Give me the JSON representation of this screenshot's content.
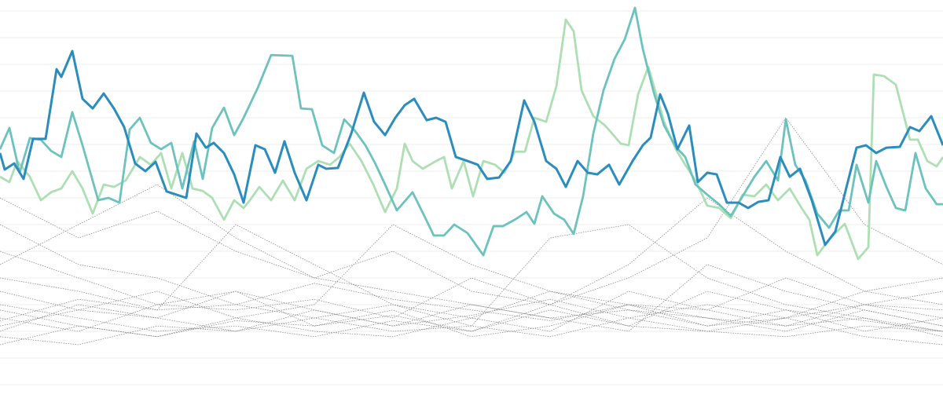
{
  "chart_data": {
    "type": "line",
    "title": "",
    "xlabel": "",
    "ylabel": "",
    "xlim": [
      0,
      120
    ],
    "ylim": [
      0,
      140
    ],
    "grid": {
      "horizontal": true,
      "vertical": false,
      "step": 10
    },
    "legend": "none",
    "colors": {
      "grid": "#eeeeee",
      "background": "#ffffff",
      "context": "#8a8a8a"
    },
    "highlight_series": [
      {
        "color": "#2b8cbe",
        "x": [
          0,
          0.6,
          1.8,
          3,
          4.2,
          5.8,
          7.2,
          7.8,
          9.2,
          10.5,
          11.8,
          13.2,
          14.5,
          15.8,
          17.2,
          18.5,
          19.8,
          21.2,
          23.7,
          25,
          26.2,
          27.2,
          28.5,
          29.8,
          31,
          32.5,
          33.7,
          35,
          36.2,
          37.5,
          39,
          40.5,
          41.5,
          43,
          44.7,
          46.3,
          47.6,
          49,
          50.3,
          51.5,
          52.7,
          54.3,
          55.5,
          56.7,
          58,
          59.5,
          60.8,
          62,
          63.5,
          65,
          66.7,
          68,
          69.5,
          70.8,
          72,
          73.5,
          74.8,
          76,
          77.5,
          78.8,
          80.5,
          81.8,
          82.8,
          84,
          85,
          86.2,
          87.7,
          88.8,
          90,
          91.2,
          92.5,
          94,
          95.2,
          96.5,
          97.8,
          99.3,
          100.5,
          101.8,
          103.3,
          105,
          106.3,
          107.8,
          109,
          110.2,
          111.5,
          112.8,
          114.5,
          115.8,
          117,
          118.5,
          120
        ],
        "y": [
          86.8,
          80.6,
          82.9,
          77.1,
          92.1,
          92.1,
          118.2,
          115.3,
          125,
          107.1,
          103.5,
          109.1,
          103.5,
          96.5,
          82.9,
          80,
          83.5,
          72.4,
          70,
          94.1,
          88.8,
          90.6,
          86.8,
          78.8,
          68.2,
          89.7,
          88.2,
          79.4,
          91.2,
          79.4,
          69.1,
          82.4,
          80.9,
          81.2,
          94.1,
          109.4,
          98.5,
          93.5,
          100,
          104.7,
          107.1,
          99.1,
          100,
          98.5,
          85.3,
          83.8,
          82.4,
          77.1,
          77.6,
          83.8,
          106.5,
          98.5,
          83.8,
          80.9,
          74.1,
          83.8,
          79.4,
          78.8,
          82.4,
          75,
          83.8,
          89.7,
          92.6,
          108.8,
          101.5,
          88.2,
          97.1,
          75.9,
          79.4,
          78.8,
          68.2,
          68.2,
          66.2,
          68.5,
          69.1,
          85.3,
          77.9,
          80.9,
          69.1,
          52.4,
          57.4,
          75,
          88.8,
          89.7,
          86.8,
          88.8,
          89.1,
          96.5,
          95,
          100.6,
          89.7
        ]
      },
      {
        "color": "#6cc3bd",
        "x": [
          0,
          1.2,
          2.5,
          3.8,
          5.2,
          6.5,
          7.8,
          9.2,
          10.5,
          12.5,
          13.8,
          15.2,
          16.5,
          17.8,
          19.2,
          20.5,
          21.8,
          23.2,
          24.7,
          25.8,
          27,
          28.5,
          29.8,
          31,
          32.8,
          34.5,
          37.2,
          38.3,
          39.7,
          41,
          42.5,
          43.8,
          45.2,
          46.5,
          47.7,
          49,
          50.5,
          52.5,
          54,
          55.2,
          56.5,
          57.8,
          59.5,
          61.5,
          62.8,
          64,
          65.5,
          67,
          68,
          69,
          70.5,
          71.8,
          73,
          74.2,
          75.5,
          76.8,
          78.2,
          79.5,
          80.8,
          81.8,
          83.2,
          84.5,
          86,
          87.2,
          88.5,
          90,
          91.5,
          93,
          94.5,
          96,
          97.5,
          99,
          100,
          101.2,
          102.5,
          104,
          105.5,
          106.8,
          108,
          109,
          110.5,
          111.5,
          112.8,
          114,
          115.2,
          116.5,
          117.8,
          119.2,
          120
        ],
        "y": [
          88.2,
          96.2,
          79.4,
          92.4,
          91.8,
          87.6,
          85.3,
          102.1,
          89.7,
          69.1,
          70,
          68.2,
          95.6,
          100,
          90.6,
          88.2,
          90.6,
          73.5,
          91.2,
          77.1,
          96.2,
          103.8,
          93.5,
          100,
          111.2,
          123.5,
          123.2,
          103.5,
          103.2,
          89.7,
          86.8,
          99.4,
          95,
          89.7,
          83.2,
          75,
          65.3,
          72.1,
          63.2,
          55.9,
          55.9,
          60,
          56.8,
          48.5,
          59.4,
          59.4,
          61.8,
          64.7,
          60.3,
          70.6,
          64.1,
          61.8,
          56.5,
          70.6,
          94.1,
          110.3,
          122.1,
          129.4,
          141.2,
          125.8,
          109.4,
          97.1,
          89.1,
          85.3,
          75,
          71.2,
          67.6,
          63.2,
          70.6,
          77.9,
          83.8,
          76.5,
          99.4,
          82.4,
          76.5,
          64.1,
          58.8,
          65.3,
          65.3,
          82.4,
          68.2,
          83.8,
          74.1,
          66.2,
          65.3,
          86.8,
          73.5,
          67.6,
          67.6
        ]
      },
      {
        "color": "#aedfb4",
        "x": [
          0,
          1.2,
          2.2,
          3.8,
          5.2,
          6.5,
          7.8,
          9.2,
          10.5,
          11.8,
          13.2,
          14.5,
          16,
          17.8,
          19.2,
          20.5,
          21.8,
          23.2,
          24.5,
          25.8,
          27,
          28.5,
          29.8,
          31,
          31.8,
          33,
          34.5,
          36,
          37.5,
          39,
          40.5,
          42,
          43.2,
          44.5,
          46,
          47.5,
          49,
          50.5,
          51.5,
          52.5,
          53.8,
          55.5,
          56.5,
          57.5,
          59,
          60.2,
          61.5,
          63,
          64.2,
          65.5,
          66.8,
          68,
          69.5,
          70.8,
          72,
          73,
          74,
          75.5,
          77,
          79,
          80,
          81.2,
          82.5,
          83.5,
          84.5,
          86,
          87.2,
          88.5,
          90,
          91.5,
          93,
          94.5,
          96,
          97.5,
          99,
          100.5,
          102,
          103,
          104,
          105.5,
          107.5,
          109.2,
          110.5,
          111.2,
          112.5,
          114,
          115.8,
          116.8,
          118,
          119.2,
          120
        ],
        "y": [
          77.9,
          75.9,
          83.8,
          77.9,
          69.1,
          72.1,
          73.5,
          80,
          73.5,
          64.1,
          75,
          74.1,
          76.5,
          85.3,
          82.4,
          86.8,
          73.5,
          86.8,
          73.5,
          72.6,
          70,
          61.8,
          69.1,
          66.2,
          69.1,
          74.1,
          69.1,
          76.5,
          69.1,
          80.9,
          83.8,
          82.4,
          85.3,
          90.3,
          83.8,
          75,
          64.7,
          73.5,
          90.3,
          83.8,
          80.9,
          83.8,
          85.3,
          73.5,
          83.8,
          70.6,
          83.8,
          82.4,
          79.4,
          87.3,
          87.3,
          100,
          98.5,
          111.8,
          136.8,
          132.4,
          110.3,
          100.6,
          97.1,
          90.3,
          89.7,
          108.8,
          119.1,
          108.8,
          98.5,
          88.2,
          82.4,
          76.5,
          67.1,
          66.2,
          62.4,
          71.2,
          70.6,
          75,
          69.1,
          73.5,
          66.2,
          61.8,
          48.5,
          54.4,
          60.3,
          47.1,
          51.5,
          116.2,
          115.6,
          112.4,
          91.8,
          91.8,
          83.8,
          81.8,
          85.3
        ]
      }
    ],
    "context_series": {
      "x": [
        0,
        10,
        20,
        30,
        40,
        50,
        60,
        70,
        80,
        90,
        100,
        110,
        120
      ],
      "series": [
        [
          30,
          25,
          20,
          22,
          18,
          24,
          20,
          28,
          22,
          20,
          25,
          18,
          15
        ],
        [
          60,
          45,
          40,
          30,
          25,
          20,
          22,
          18,
          25,
          20,
          18,
          22,
          20
        ],
        [
          20,
          30,
          25,
          35,
          22,
          28,
          18,
          22,
          30,
          25,
          20,
          28,
          22
        ],
        [
          70,
          55,
          65,
          50,
          40,
          35,
          30,
          25,
          28,
          22,
          25,
          30,
          35
        ],
        [
          25,
          20,
          30,
          28,
          32,
          25,
          40,
          30,
          22,
          35,
          28,
          20,
          25
        ],
        [
          15,
          22,
          18,
          25,
          20,
          18,
          25,
          20,
          35,
          28,
          22,
          25,
          18
        ],
        [
          40,
          35,
          28,
          60,
          45,
          30,
          25,
          35,
          30,
          28,
          40,
          30,
          25
        ],
        [
          22,
          28,
          35,
          25,
          30,
          60,
          45,
          35,
          28,
          25,
          22,
          30,
          28
        ],
        [
          35,
          28,
          25,
          20,
          25,
          30,
          22,
          55,
          60,
          40,
          30,
          25,
          20
        ],
        [
          18,
          15,
          22,
          20,
          28,
          22,
          30,
          25,
          20,
          45,
          35,
          28,
          22
        ],
        [
          45,
          60,
          75,
          55,
          40,
          50,
          35,
          30,
          45,
          70,
          50,
          35,
          40
        ],
        [
          28,
          22,
          18,
          24,
          22,
          26,
          20,
          30,
          40,
          55,
          100,
          60,
          45
        ],
        [
          50,
          40,
          30,
          35,
          28,
          22,
          26,
          32,
          25,
          30,
          25,
          35,
          30
        ],
        [
          24,
          32,
          28,
          30,
          38,
          32,
          28,
          24,
          30,
          22,
          28,
          24,
          20
        ]
      ]
    }
  }
}
